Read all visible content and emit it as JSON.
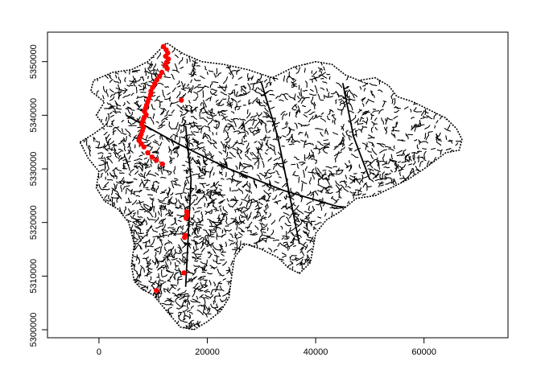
{
  "chart_data": {
    "type": "scatter",
    "title": "",
    "xlabel": "",
    "ylabel": "",
    "xlim": [
      -9500,
      75500
    ],
    "ylim": [
      5298500,
      5355500
    ],
    "x_ticks": [
      0,
      20000,
      40000,
      60000
    ],
    "x_tick_labels": [
      "0",
      "20000",
      "40000",
      "60000"
    ],
    "y_ticks": [
      5300000,
      5310000,
      5320000,
      5330000,
      5340000,
      5350000
    ],
    "y_tick_labels": [
      "5300000",
      "5310000",
      "5320000",
      "5330000",
      "5340000",
      "5350000"
    ],
    "grid": false,
    "legend": "none",
    "colors": {
      "network": "#000000",
      "points": "#ff0000",
      "frame": "#000000"
    },
    "background_layer": "river-network",
    "outline": [
      [
        -3500,
        5335000
      ],
      [
        -1000,
        5336500
      ],
      [
        1000,
        5338000
      ],
      [
        -500,
        5340000
      ],
      [
        1000,
        5342500
      ],
      [
        -1500,
        5344500
      ],
      [
        -1000,
        5346500
      ],
      [
        2500,
        5348000
      ],
      [
        6000,
        5348500
      ],
      [
        9000,
        5350000
      ],
      [
        11500,
        5352500
      ],
      [
        12500,
        5353500
      ],
      [
        15500,
        5351500
      ],
      [
        19000,
        5350000
      ],
      [
        23000,
        5349500
      ],
      [
        27500,
        5348500
      ],
      [
        32000,
        5347000
      ],
      [
        36000,
        5349000
      ],
      [
        40000,
        5350000
      ],
      [
        43000,
        5349500
      ],
      [
        45500,
        5347500
      ],
      [
        48000,
        5346500
      ],
      [
        51000,
        5347000
      ],
      [
        53500,
        5345500
      ],
      [
        55000,
        5343500
      ],
      [
        58000,
        5342500
      ],
      [
        61000,
        5341000
      ],
      [
        64000,
        5339500
      ],
      [
        66000,
        5337500
      ],
      [
        67000,
        5335500
      ],
      [
        66500,
        5333500
      ],
      [
        64000,
        5333000
      ],
      [
        62000,
        5331500
      ],
      [
        60000,
        5330000
      ],
      [
        57000,
        5328000
      ],
      [
        54000,
        5326500
      ],
      [
        51000,
        5325000
      ],
      [
        47500,
        5324500
      ],
      [
        44500,
        5322000
      ],
      [
        42000,
        5320500
      ],
      [
        40000,
        5318000
      ],
      [
        39500,
        5315000
      ],
      [
        39000,
        5312500
      ],
      [
        37000,
        5310500
      ],
      [
        35000,
        5311500
      ],
      [
        33000,
        5313500
      ],
      [
        30000,
        5315000
      ],
      [
        27000,
        5316000
      ],
      [
        25000,
        5313500
      ],
      [
        24500,
        5310000
      ],
      [
        24000,
        5306000
      ],
      [
        22500,
        5303500
      ],
      [
        20000,
        5301500
      ],
      [
        17500,
        5300000
      ],
      [
        15000,
        5300500
      ],
      [
        12500,
        5303500
      ],
      [
        10000,
        5306500
      ],
      [
        8000,
        5307500
      ],
      [
        6500,
        5309000
      ],
      [
        6000,
        5312000
      ],
      [
        6500,
        5316000
      ],
      [
        5500,
        5320000
      ],
      [
        3500,
        5322500
      ],
      [
        1000,
        5324000
      ],
      [
        -500,
        5326500
      ],
      [
        0,
        5329500
      ],
      [
        -2000,
        5332000
      ],
      [
        -3500,
        5335000
      ]
    ],
    "highlight_points": {
      "x": [
        11900,
        12400,
        12700,
        12300,
        12800,
        12500,
        12200,
        12600,
        11600,
        11200,
        10700,
        10300,
        9900,
        9600,
        9500,
        9200,
        9000,
        8800,
        8600,
        8400,
        8700,
        8300,
        8100,
        7900,
        8200,
        8000,
        7800,
        7600,
        7400,
        7800,
        8300,
        9000,
        9800,
        10600,
        11700,
        15200,
        16200,
        16300,
        16100,
        15900,
        15800,
        15700,
        10600
      ],
      "y": [
        5352800,
        5352200,
        5351600,
        5351000,
        5350500,
        5349900,
        5349300,
        5348700,
        5348000,
        5347300,
        5346600,
        5345900,
        5345200,
        5344500,
        5343800,
        5343100,
        5342500,
        5341900,
        5341300,
        5340700,
        5340100,
        5339500,
        5338900,
        5338300,
        5337700,
        5337100,
        5336500,
        5335900,
        5335300,
        5334700,
        5334100,
        5333000,
        5332200,
        5331600,
        5330900,
        5342800,
        5322000,
        5321400,
        5320800,
        5317600,
        5317200,
        5310600,
        5307300
      ]
    }
  }
}
